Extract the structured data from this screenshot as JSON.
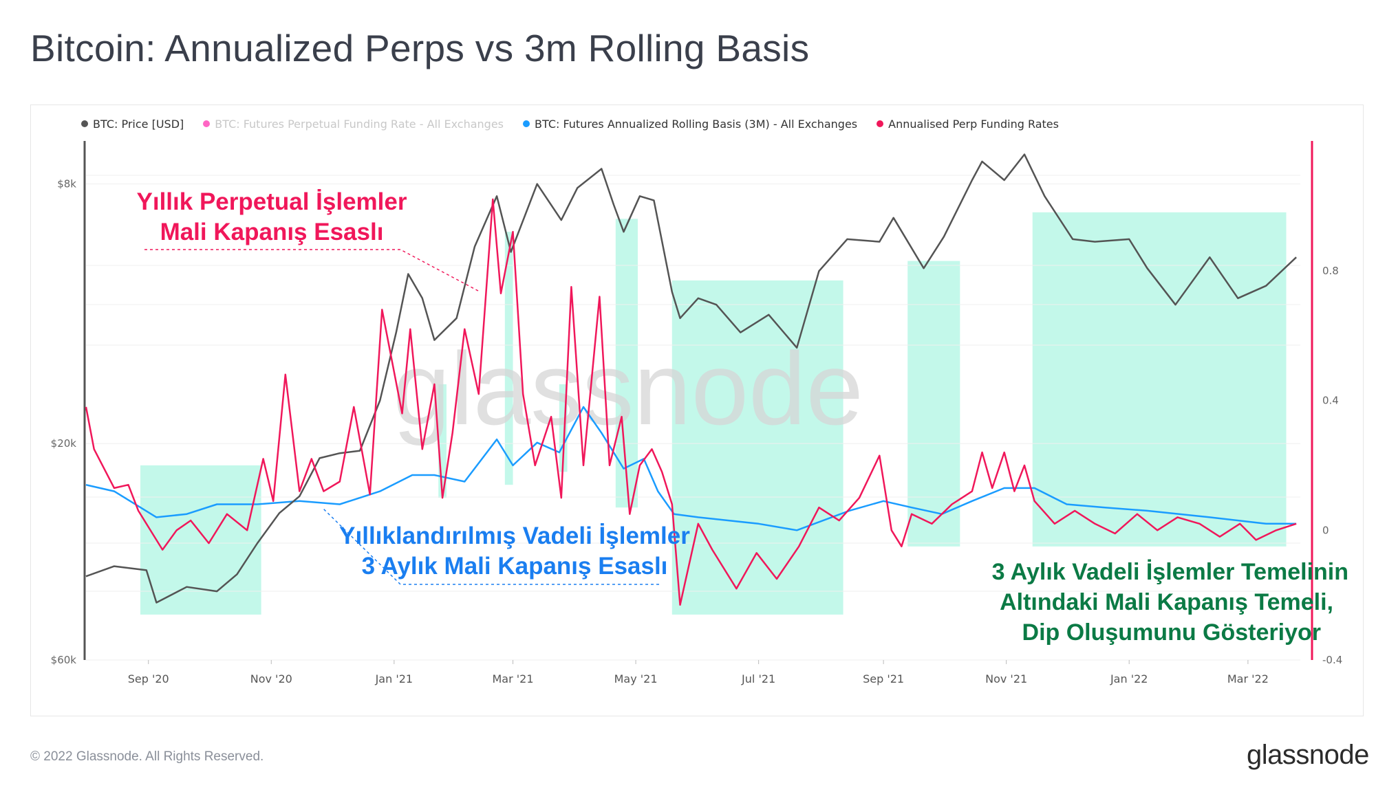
{
  "page_title": "Bitcoin: Annualized Perps vs 3m Rolling Basis",
  "footer": {
    "copyright": "© 2022 Glassnode. All Rights Reserved.",
    "logo": "glassnode"
  },
  "watermark": "glassnode",
  "colors": {
    "price": "#545454",
    "funding_dim": "#ff66c4",
    "basis": "#1a9cff",
    "annualised_perp": "#f0175a",
    "shade": "#b8f7e6",
    "ann_red": "#f0175a",
    "ann_blue": "#1a7ef0",
    "ann_green": "#0b7a45"
  },
  "annotations": {
    "perp": {
      "line1": "Yıllık Perpetual İşlemler",
      "line2": "Mali Kapanış Esaslı"
    },
    "basis": {
      "line1": "Yıllıklandırılmış Vadeli İşlemler",
      "line2": "3 Aylık Mali Kapanış Esaslı"
    },
    "green": {
      "line1": "3 Aylık Vadeli İşlemler Temelinin",
      "line2": "Altındaki Mali Kapanış Temeli,",
      "line3": "Dip Oluşumunu Gösteriyor"
    }
  },
  "chart_data": {
    "type": "line",
    "title": "Bitcoin: Annualized Perps vs 3m Rolling Basis",
    "legend_position": "top-left",
    "grid": true,
    "x_range": [
      "2020-08-01",
      "2022-03-27"
    ],
    "x_ticks": [
      "Sep '20",
      "Nov '20",
      "Jan '21",
      "Mar '21",
      "May '21",
      "Jul '21",
      "Sep '21",
      "Nov '21",
      "Jan '22",
      "Mar '22"
    ],
    "y_left": {
      "scale": "log",
      "range": [
        8000,
        72000
      ],
      "ticks": [
        "$8k",
        "$20k",
        "$60k"
      ]
    },
    "y_right": {
      "scale": "linear",
      "range": [
        -0.4,
        1.2
      ],
      "ticks": [
        "0.8",
        "0.4",
        "0",
        "-0.4"
      ]
    },
    "shaded_periods": [
      [
        "2020-08-28",
        "2020-10-27"
      ],
      [
        "2021-01-23",
        "2021-01-27"
      ],
      [
        "2021-02-25",
        "2021-03-01"
      ],
      [
        "2021-03-24",
        "2021-03-28"
      ],
      [
        "2021-04-21",
        "2021-05-02"
      ],
      [
        "2021-05-19",
        "2021-08-12"
      ],
      [
        "2021-09-13",
        "2021-10-09"
      ],
      [
        "2021-11-14",
        "2022-03-20"
      ]
    ],
    "series": [
      {
        "name": "BTC: Price [USD]",
        "axis": "left",
        "x": [
          "2020-08-01",
          "2020-08-15",
          "2020-08-31",
          "2020-09-05",
          "2020-09-20",
          "2020-10-05",
          "2020-10-15",
          "2020-10-25",
          "2020-11-05",
          "2020-11-15",
          "2020-11-25",
          "2020-12-05",
          "2020-12-15",
          "2020-12-25",
          "2021-01-02",
          "2021-01-08",
          "2021-01-15",
          "2021-01-21",
          "2021-02-01",
          "2021-02-10",
          "2021-02-21",
          "2021-02-28",
          "2021-03-13",
          "2021-03-25",
          "2021-04-02",
          "2021-04-14",
          "2021-04-20",
          "2021-04-25",
          "2021-05-03",
          "2021-05-10",
          "2021-05-19",
          "2021-05-23",
          "2021-06-01",
          "2021-06-10",
          "2021-06-22",
          "2021-07-06",
          "2021-07-20",
          "2021-07-31",
          "2021-08-14",
          "2021-08-30",
          "2021-09-06",
          "2021-09-21",
          "2021-10-01",
          "2021-10-15",
          "2021-10-20",
          "2021-10-31",
          "2021-11-10",
          "2021-11-20",
          "2021-12-04",
          "2021-12-15",
          "2022-01-01",
          "2022-01-10",
          "2022-01-24",
          "2022-02-10",
          "2022-02-24",
          "2022-03-10",
          "2022-03-25"
        ],
        "y": [
          11400,
          11900,
          11700,
          10200,
          10900,
          10700,
          11500,
          13100,
          14900,
          16000,
          18800,
          19200,
          19400,
          24000,
          32000,
          41000,
          37000,
          31000,
          34000,
          46000,
          57000,
          45000,
          60000,
          51500,
          59000,
          64000,
          55000,
          49000,
          57000,
          56000,
          38000,
          34000,
          37000,
          36000,
          32000,
          34500,
          30000,
          41500,
          47500,
          47000,
          52000,
          42000,
          48000,
          61000,
          66000,
          61000,
          68000,
          57000,
          47500,
          47000,
          47500,
          42000,
          36000,
          44000,
          37000,
          39000,
          44000
        ]
      },
      {
        "name": "BTC: Futures Perpetual Funding Rate - All Exchanges",
        "axis": "right",
        "visible": false,
        "values_shown": false
      },
      {
        "name": "BTC: Futures Annualized Rolling Basis (3M) - All Exchanges",
        "axis": "right",
        "x": [
          "2020-08-01",
          "2020-08-15",
          "2020-09-05",
          "2020-09-20",
          "2020-10-05",
          "2020-10-25",
          "2020-11-15",
          "2020-12-05",
          "2020-12-25",
          "2021-01-10",
          "2021-01-21",
          "2021-02-05",
          "2021-02-21",
          "2021-03-01",
          "2021-03-13",
          "2021-03-24",
          "2021-04-05",
          "2021-04-14",
          "2021-04-25",
          "2021-05-05",
          "2021-05-12",
          "2021-05-20",
          "2021-06-01",
          "2021-07-01",
          "2021-07-20",
          "2021-08-15",
          "2021-09-01",
          "2021-09-15",
          "2021-09-30",
          "2021-10-15",
          "2021-10-31",
          "2021-11-15",
          "2021-12-01",
          "2021-12-20",
          "2022-01-10",
          "2022-02-10",
          "2022-03-10",
          "2022-03-25"
        ],
        "y": [
          0.14,
          0.12,
          0.04,
          0.05,
          0.08,
          0.08,
          0.09,
          0.08,
          0.12,
          0.17,
          0.17,
          0.15,
          0.28,
          0.2,
          0.27,
          0.24,
          0.38,
          0.3,
          0.19,
          0.22,
          0.12,
          0.05,
          0.04,
          0.02,
          0.0,
          0.06,
          0.09,
          0.07,
          0.05,
          0.09,
          0.13,
          0.13,
          0.08,
          0.07,
          0.06,
          0.04,
          0.02,
          0.02
        ]
      },
      {
        "name": "Annualised Perp Funding Rates",
        "axis": "right",
        "x": [
          "2020-08-01",
          "2020-08-05",
          "2020-08-15",
          "2020-08-22",
          "2020-08-27",
          "2020-09-01",
          "2020-09-08",
          "2020-09-15",
          "2020-09-22",
          "2020-10-01",
          "2020-10-10",
          "2020-10-20",
          "2020-10-28",
          "2020-11-02",
          "2020-11-08",
          "2020-11-15",
          "2020-11-21",
          "2020-11-27",
          "2020-12-05",
          "2020-12-12",
          "2020-12-20",
          "2020-12-26",
          "2021-01-05",
          "2021-01-09",
          "2021-01-15",
          "2021-01-21",
          "2021-01-25",
          "2021-01-30",
          "2021-02-05",
          "2021-02-12",
          "2021-02-19",
          "2021-02-23",
          "2021-03-01",
          "2021-03-06",
          "2021-03-12",
          "2021-03-20",
          "2021-03-25",
          "2021-03-30",
          "2021-04-05",
          "2021-04-13",
          "2021-04-18",
          "2021-04-24",
          "2021-04-28",
          "2021-05-03",
          "2021-05-09",
          "2021-05-14",
          "2021-05-19",
          "2021-05-23",
          "2021-06-01",
          "2021-06-08",
          "2021-06-20",
          "2021-06-30",
          "2021-07-10",
          "2021-07-21",
          "2021-07-31",
          "2021-08-10",
          "2021-08-20",
          "2021-08-30",
          "2021-09-05",
          "2021-09-10",
          "2021-09-15",
          "2021-09-25",
          "2021-10-05",
          "2021-10-15",
          "2021-10-20",
          "2021-10-25",
          "2021-10-31",
          "2021-11-05",
          "2021-11-10",
          "2021-11-15",
          "2021-11-25",
          "2021-12-05",
          "2021-12-15",
          "2021-12-25",
          "2022-01-05",
          "2022-01-15",
          "2022-01-25",
          "2022-02-05",
          "2022-02-15",
          "2022-02-25",
          "2022-03-05",
          "2022-03-15",
          "2022-03-25"
        ],
        "y": [
          0.38,
          0.25,
          0.13,
          0.14,
          0.06,
          0.01,
          -0.06,
          0.0,
          0.03,
          -0.04,
          0.05,
          0.0,
          0.22,
          0.09,
          0.48,
          0.12,
          0.22,
          0.12,
          0.15,
          0.38,
          0.11,
          0.68,
          0.36,
          0.62,
          0.25,
          0.45,
          0.1,
          0.3,
          0.62,
          0.42,
          1.02,
          0.73,
          0.92,
          0.42,
          0.2,
          0.35,
          0.1,
          0.75,
          0.2,
          0.72,
          0.2,
          0.35,
          0.05,
          0.2,
          0.25,
          0.18,
          0.08,
          -0.23,
          0.02,
          -0.06,
          -0.18,
          -0.07,
          -0.15,
          -0.05,
          0.07,
          0.03,
          0.1,
          0.23,
          0.0,
          -0.05,
          0.05,
          0.02,
          0.08,
          0.12,
          0.24,
          0.13,
          0.24,
          0.12,
          0.2,
          0.09,
          0.02,
          0.06,
          0.02,
          -0.01,
          0.05,
          0.0,
          0.04,
          0.02,
          -0.02,
          0.02,
          -0.03,
          0.0,
          0.02
        ]
      }
    ]
  }
}
